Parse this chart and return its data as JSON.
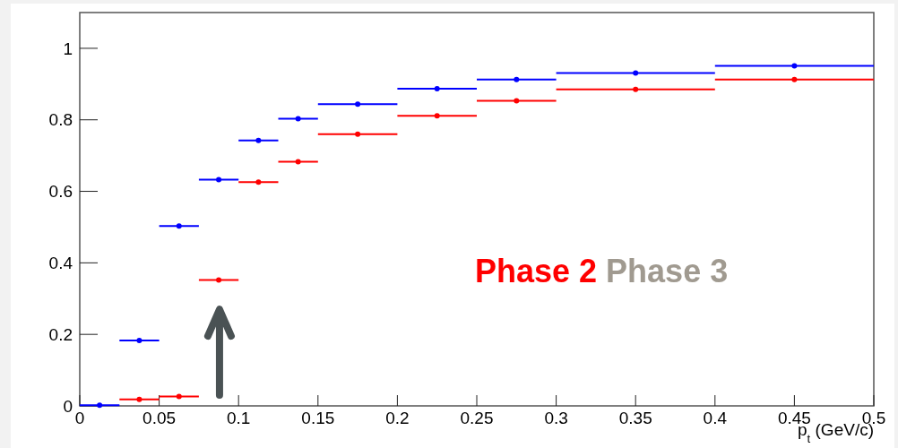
{
  "chart_data": {
    "type": "scatter",
    "xlabel": "p$_{t}$ (GeV/c)",
    "xlim": [
      0,
      0.5
    ],
    "ylim": [
      0,
      1.1
    ],
    "xticks": [
      0,
      0.05,
      0.1,
      0.15,
      0.2,
      0.25,
      0.3,
      0.35,
      0.4,
      0.45,
      0.5
    ],
    "yticks": [
      0,
      0.2,
      0.4,
      0.6,
      0.8,
      1
    ],
    "marker": "circle",
    "grid": false,
    "annotations": [
      "Phase 3"
    ],
    "series": [
      {
        "color": "#0000ff",
        "x": [
          0.0125,
          0.0375,
          0.0625,
          0.0875,
          0.1125,
          0.1375,
          0.175,
          0.225,
          0.275,
          0.35,
          0.45
        ],
        "values": [
          0.002,
          0.183,
          0.503,
          0.633,
          0.742,
          0.803,
          0.844,
          0.887,
          0.913,
          0.931,
          0.951
        ],
        "xerrors": [
          0.0125,
          0.0125,
          0.0125,
          0.0125,
          0.0125,
          0.0125,
          0.025,
          0.025,
          0.025,
          0.05,
          0.05
        ]
      },
      {
        "name": "Phase 2",
        "color": "#ff0000",
        "x": [
          0.0375,
          0.0625,
          0.0875,
          0.1125,
          0.1375,
          0.175,
          0.225,
          0.275,
          0.35,
          0.45
        ],
        "values": [
          0.018,
          0.026,
          0.352,
          0.626,
          0.683,
          0.76,
          0.811,
          0.853,
          0.885,
          0.913
        ],
        "xerrors": [
          0.0125,
          0.0125,
          0.0125,
          0.0125,
          0.0125,
          0.025,
          0.025,
          0.025,
          0.05,
          0.05
        ]
      }
    ]
  }
}
